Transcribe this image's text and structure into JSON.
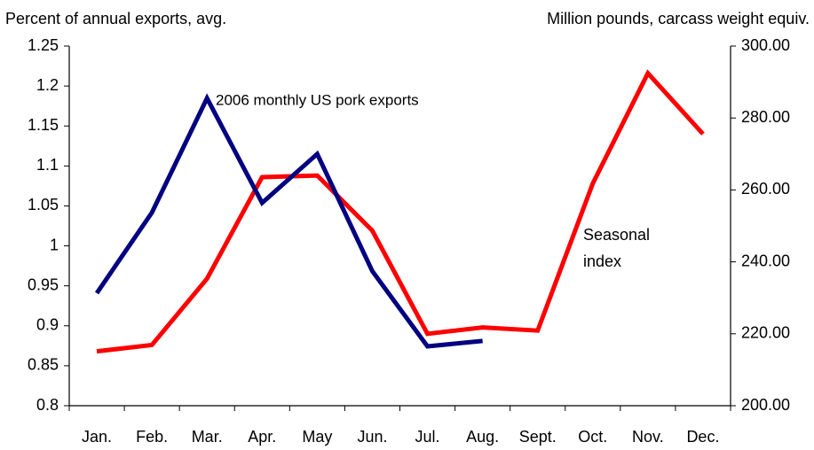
{
  "chart_data": {
    "type": "line",
    "y_label": "Percent of annual exports, avg.",
    "y2_label": "Million pounds, carcass weight equiv.",
    "categories": [
      "Jan.",
      "Feb.",
      "Mar.",
      "Apr.",
      "May",
      "Jun.",
      "Jul.",
      "Aug.",
      "Sept.",
      "Oct.",
      "Nov.",
      "Dec."
    ],
    "series": [
      {
        "name": "Seasonal index",
        "color": "#ff0000",
        "values": [
          0.868,
          0.876,
          0.959,
          1.086,
          1.088,
          1.019,
          0.89,
          0.898,
          0.894,
          1.078,
          1.216,
          1.14
        ]
      },
      {
        "name": "2006 monthly US pork exports",
        "color": "#000080",
        "axis": "y2",
        "values": [
          231.3,
          253.7,
          285.5,
          256.4,
          270.0,
          237.4,
          216.5,
          218.0,
          null,
          null,
          null,
          null
        ]
      }
    ],
    "ylim": [
      0.8,
      1.25
    ],
    "yticks": [
      0.8,
      0.85,
      0.9,
      0.95,
      1,
      1.05,
      1.1,
      1.15,
      1.2,
      1.25
    ],
    "y2lim": [
      200,
      300
    ],
    "y2ticks": [
      {
        "value": 200,
        "label": "200.00"
      },
      {
        "value": 220,
        "label": "220.00"
      },
      {
        "value": 240,
        "label": "240.00"
      },
      {
        "value": 260,
        "label": "260.00"
      },
      {
        "value": 280,
        "label": "280.00"
      },
      {
        "value": 300,
        "label": "300.00"
      }
    ],
    "grid": false
  }
}
